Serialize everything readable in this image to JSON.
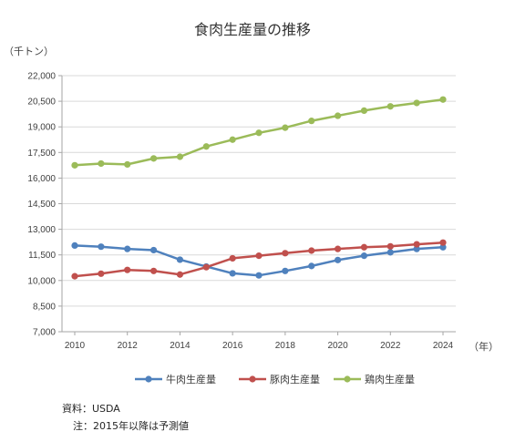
{
  "chart_data": {
    "type": "line",
    "title": "食肉生産量の推移",
    "y_unit": "（千トン）",
    "x_unit": "（年）",
    "x": [
      2010,
      2011,
      2012,
      2013,
      2014,
      2015,
      2016,
      2017,
      2018,
      2019,
      2020,
      2021,
      2022,
      2023,
      2024
    ],
    "x_tick_labels": [
      "2010",
      "2012",
      "2014",
      "2016",
      "2018",
      "2020",
      "2022",
      "2024"
    ],
    "ylim": [
      7000,
      22000
    ],
    "y_tick_labels": [
      "7,000",
      "8,500",
      "10,000",
      "11,500",
      "13,000",
      "14,500",
      "16,000",
      "17,500",
      "19,000",
      "20,500",
      "22,000"
    ],
    "grid": true,
    "legend_position": "bottom",
    "series": [
      {
        "name": "牛肉生産量",
        "color": "#4f81bd",
        "values": [
          12050,
          11980,
          11850,
          11780,
          11220,
          10820,
          10420,
          10300,
          10560,
          10850,
          11200,
          11450,
          11650,
          11850,
          11950
        ]
      },
      {
        "name": "豚肉生産量",
        "color": "#c0504d",
        "values": [
          10250,
          10400,
          10620,
          10560,
          10350,
          10780,
          11300,
          11450,
          11600,
          11750,
          11850,
          11950,
          12000,
          12120,
          12220
        ]
      },
      {
        "name": "鶏肉生産量",
        "color": "#9bbb59",
        "values": [
          16750,
          16850,
          16800,
          17150,
          17250,
          17850,
          18250,
          18650,
          18950,
          19350,
          19650,
          19950,
          20200,
          20400,
          20600
        ]
      }
    ]
  },
  "notes": {
    "source": "資料：USDA",
    "note": "注：2015年以降は予測値"
  }
}
